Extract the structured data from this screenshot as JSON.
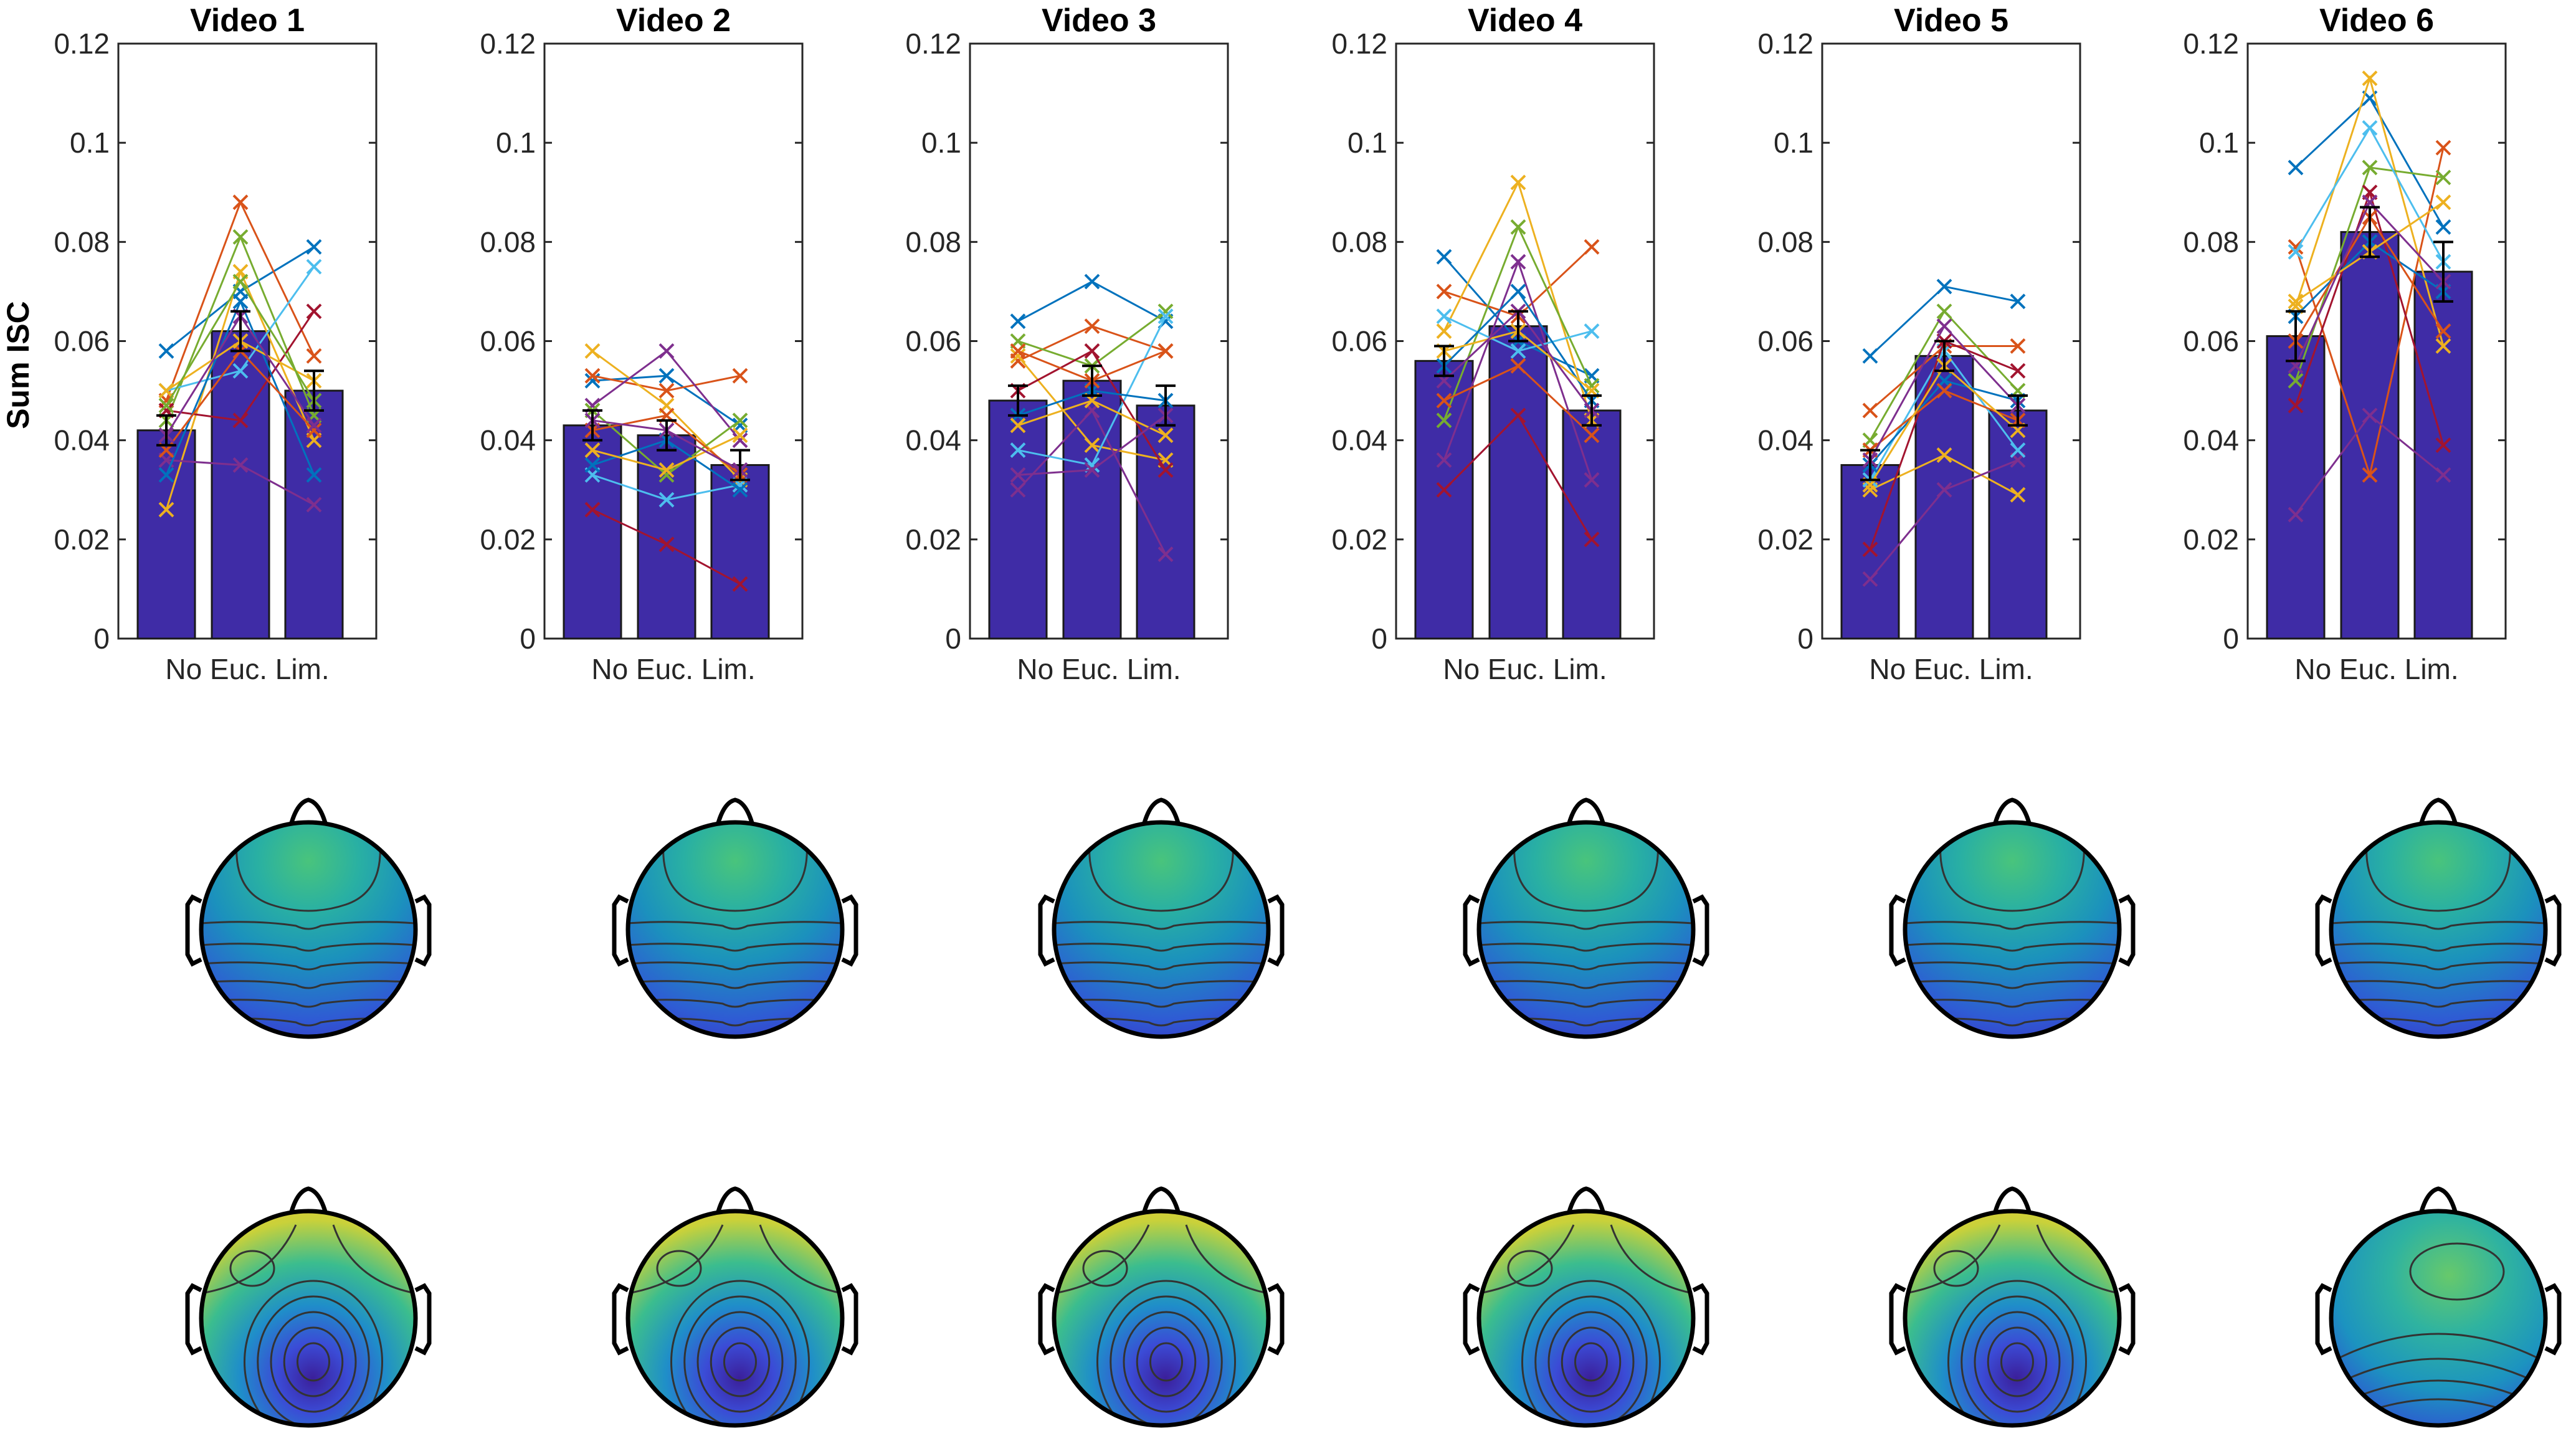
{
  "figure": {
    "ylabel": "Sum ISC",
    "color_scheme": {
      "bar": "#3F2CA6",
      "bar_edge": "#1a1a1a",
      "error": "#000000",
      "axis": "#262626",
      "subject_colors": [
        "#0072BD",
        "#D95319",
        "#EDB120",
        "#7E2F8E",
        "#77AC30",
        "#4DBEEE",
        "#A2142F"
      ]
    }
  },
  "chart_data": [
    {
      "type": "bar",
      "title": "Video 1",
      "categories": [
        "No",
        "Euc.",
        "Lim."
      ],
      "values": [
        0.042,
        0.062,
        0.05
      ],
      "errors": [
        0.003,
        0.004,
        0.004
      ],
      "ylim": [
        0,
        0.12
      ],
      "yticks": [
        "0",
        "0.02",
        "0.04",
        "0.06",
        "0.08",
        "0.1",
        "0.12"
      ],
      "xtick_label": "No Euc. Lim.",
      "subjects": [
        [
          0.058,
          0.07,
          0.079
        ],
        [
          0.048,
          0.088,
          0.057
        ],
        [
          0.026,
          0.074,
          0.04
        ],
        [
          0.036,
          0.035,
          0.027
        ],
        [
          0.044,
          0.081,
          0.045
        ],
        [
          0.05,
          0.054,
          0.075
        ],
        [
          0.046,
          0.044,
          0.066
        ],
        [
          0.033,
          0.068,
          0.033
        ],
        [
          0.038,
          0.058,
          0.042
        ],
        [
          0.05,
          0.06,
          0.052
        ],
        [
          0.041,
          0.065,
          0.043
        ],
        [
          0.047,
          0.072,
          0.048
        ]
      ]
    },
    {
      "type": "bar",
      "title": "Video 2",
      "categories": [
        "No",
        "Euc.",
        "Lim."
      ],
      "values": [
        0.043,
        0.041,
        0.035
      ],
      "errors": [
        0.003,
        0.003,
        0.003
      ],
      "ylim": [
        0,
        0.12
      ],
      "yticks": [
        "0",
        "0.02",
        "0.04",
        "0.06",
        "0.08",
        "0.1",
        "0.12"
      ],
      "xtick_label": "No Euc. Lim.",
      "subjects": [
        [
          0.052,
          0.053,
          0.043
        ],
        [
          0.053,
          0.05,
          0.053
        ],
        [
          0.058,
          0.047,
          0.032
        ],
        [
          0.047,
          0.058,
          0.04
        ],
        [
          0.046,
          0.033,
          0.044
        ],
        [
          0.033,
          0.028,
          0.031
        ],
        [
          0.026,
          0.019,
          0.011
        ],
        [
          0.035,
          0.04,
          0.03
        ],
        [
          0.042,
          0.045,
          0.033
        ],
        [
          0.038,
          0.034,
          0.041
        ],
        [
          0.044,
          0.042,
          0.034
        ]
      ]
    },
    {
      "type": "bar",
      "title": "Video 3",
      "categories": [
        "No",
        "Euc.",
        "Lim."
      ],
      "values": [
        0.048,
        0.052,
        0.047
      ],
      "errors": [
        0.003,
        0.003,
        0.004
      ],
      "ylim": [
        0,
        0.12
      ],
      "yticks": [
        "0",
        "0.02",
        "0.04",
        "0.06",
        "0.08",
        "0.1",
        "0.12"
      ],
      "xtick_label": "No Euc. Lim.",
      "subjects": [
        [
          0.064,
          0.072,
          0.064
        ],
        [
          0.056,
          0.063,
          0.058
        ],
        [
          0.057,
          0.039,
          0.036
        ],
        [
          0.03,
          0.046,
          0.017
        ],
        [
          0.06,
          0.055,
          0.066
        ],
        [
          0.038,
          0.035,
          0.065
        ],
        [
          0.05,
          0.058,
          0.034
        ],
        [
          0.045,
          0.05,
          0.048
        ],
        [
          0.058,
          0.052,
          0.058
        ],
        [
          0.043,
          0.048,
          0.041
        ],
        [
          0.033,
          0.034,
          0.045
        ]
      ]
    },
    {
      "type": "bar",
      "title": "Video 4",
      "categories": [
        "No",
        "Euc.",
        "Lim."
      ],
      "values": [
        0.056,
        0.063,
        0.046
      ],
      "errors": [
        0.003,
        0.003,
        0.003
      ],
      "ylim": [
        0,
        0.12
      ],
      "yticks": [
        "0",
        "0.02",
        "0.04",
        "0.06",
        "0.08",
        "0.1",
        "0.12"
      ],
      "xtick_label": "No Euc. Lim.",
      "subjects": [
        [
          0.077,
          0.06,
          0.053
        ],
        [
          0.07,
          0.065,
          0.079
        ],
        [
          0.062,
          0.092,
          0.044
        ],
        [
          0.036,
          0.076,
          0.032
        ],
        [
          0.044,
          0.083,
          0.051
        ],
        [
          0.065,
          0.058,
          0.062
        ],
        [
          0.03,
          0.045,
          0.02
        ],
        [
          0.055,
          0.07,
          0.048
        ],
        [
          0.048,
          0.055,
          0.041
        ],
        [
          0.058,
          0.062,
          0.05
        ],
        [
          0.052,
          0.066,
          0.046
        ]
      ]
    },
    {
      "type": "bar",
      "title": "Video 5",
      "categories": [
        "No",
        "Euc.",
        "Lim."
      ],
      "values": [
        0.035,
        0.057,
        0.046
      ],
      "errors": [
        0.003,
        0.003,
        0.003
      ],
      "ylim": [
        0,
        0.12
      ],
      "yticks": [
        "0",
        "0.02",
        "0.04",
        "0.06",
        "0.08",
        "0.1",
        "0.12"
      ],
      "xtick_label": "No Euc. Lim.",
      "subjects": [
        [
          0.057,
          0.071,
          0.068
        ],
        [
          0.046,
          0.059,
          0.059
        ],
        [
          0.03,
          0.037,
          0.029
        ],
        [
          0.012,
          0.03,
          0.036
        ],
        [
          0.04,
          0.066,
          0.05
        ],
        [
          0.032,
          0.058,
          0.038
        ],
        [
          0.018,
          0.06,
          0.054
        ],
        [
          0.035,
          0.052,
          0.048
        ],
        [
          0.038,
          0.05,
          0.044
        ],
        [
          0.031,
          0.055,
          0.042
        ],
        [
          0.036,
          0.063,
          0.047
        ]
      ]
    },
    {
      "type": "bar",
      "title": "Video 6",
      "categories": [
        "No",
        "Euc.",
        "Lim."
      ],
      "values": [
        0.061,
        0.082,
        0.074
      ],
      "errors": [
        0.005,
        0.005,
        0.006
      ],
      "ylim": [
        0,
        0.12
      ],
      "yticks": [
        "0",
        "0.02",
        "0.04",
        "0.06",
        "0.08",
        "0.1",
        "0.12"
      ],
      "xtick_label": "No Euc. Lim.",
      "subjects": [
        [
          0.095,
          0.109,
          0.083
        ],
        [
          0.079,
          0.033,
          0.099
        ],
        [
          0.067,
          0.113,
          0.059
        ],
        [
          0.025,
          0.045,
          0.033
        ],
        [
          0.052,
          0.095,
          0.093
        ],
        [
          0.078,
          0.103,
          0.076
        ],
        [
          0.047,
          0.09,
          0.039
        ],
        [
          0.065,
          0.08,
          0.07
        ],
        [
          0.06,
          0.085,
          0.062
        ],
        [
          0.068,
          0.078,
          0.088
        ],
        [
          0.055,
          0.088,
          0.072
        ]
      ]
    }
  ]
}
